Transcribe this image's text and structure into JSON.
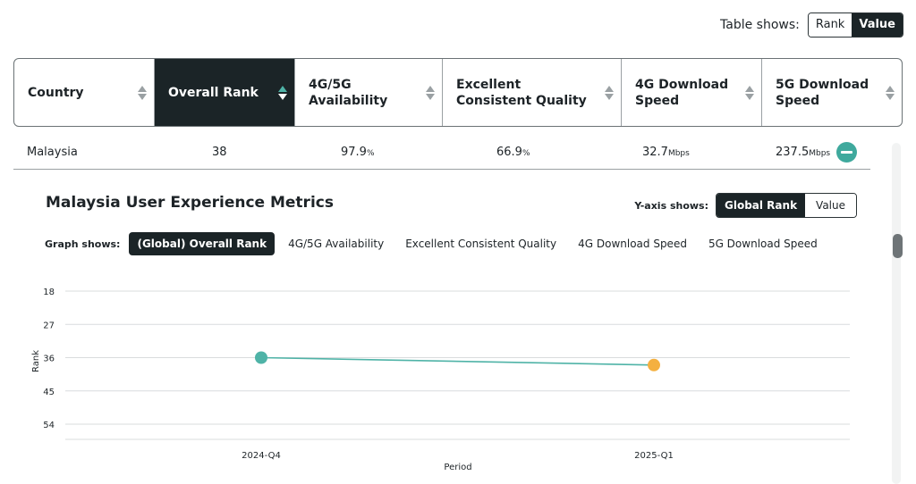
{
  "table_toggle": {
    "label": "Table shows:",
    "options": [
      "Rank",
      "Value"
    ],
    "selected": "Value"
  },
  "columns": [
    {
      "label": "Country",
      "sort": "none"
    },
    {
      "label": "Overall Rank",
      "sort": "active"
    },
    {
      "label": "4G/5G Availability",
      "sort": "none"
    },
    {
      "label": "Excellent Consistent Quality",
      "sort": "none"
    },
    {
      "label": "4G Download Speed",
      "sort": "none"
    },
    {
      "label": "5G Download Speed",
      "sort": "none"
    }
  ],
  "row": {
    "country": "Malaysia",
    "overall_rank": "38",
    "availability": "97.9",
    "availability_unit": "%",
    "quality": "66.9",
    "quality_unit": "%",
    "dl4g": "32.7",
    "dl4g_unit": "Mbps",
    "dl5g": "237.5",
    "dl5g_unit": "Mbps"
  },
  "section": {
    "title": "Malaysia User Experience Metrics",
    "yaxis_label": "Y-axis shows:",
    "yaxis_options": [
      "Global Rank",
      "Value"
    ],
    "yaxis_selected": "Global Rank",
    "graph_label": "Graph shows:",
    "graph_options": [
      "(Global) Overall Rank",
      "4G/5G Availability",
      "Excellent Consistent Quality",
      "4G Download Speed",
      "5G Download Speed"
    ],
    "graph_selected": "(Global) Overall Rank"
  },
  "icons": {
    "collapse": "minus-circle-icon",
    "sort": "sort-arrows-icon"
  },
  "colors": {
    "dark": "#1b2427",
    "accent_teal": "#4fb3a7",
    "accent_orange": "#f4b040"
  },
  "chart_data": {
    "type": "line",
    "xlabel": "Period",
    "ylabel": "Rank",
    "x": [
      "2024-Q4",
      "2025-Q1"
    ],
    "series": [
      {
        "values": [
          36,
          38
        ],
        "point_colors": [
          "#4fb3a7",
          "#f4b040"
        ]
      }
    ],
    "yticks": [
      18,
      27,
      36,
      45,
      54
    ],
    "ylim": [
      18,
      54
    ],
    "y_inverted": true,
    "grid": true
  }
}
